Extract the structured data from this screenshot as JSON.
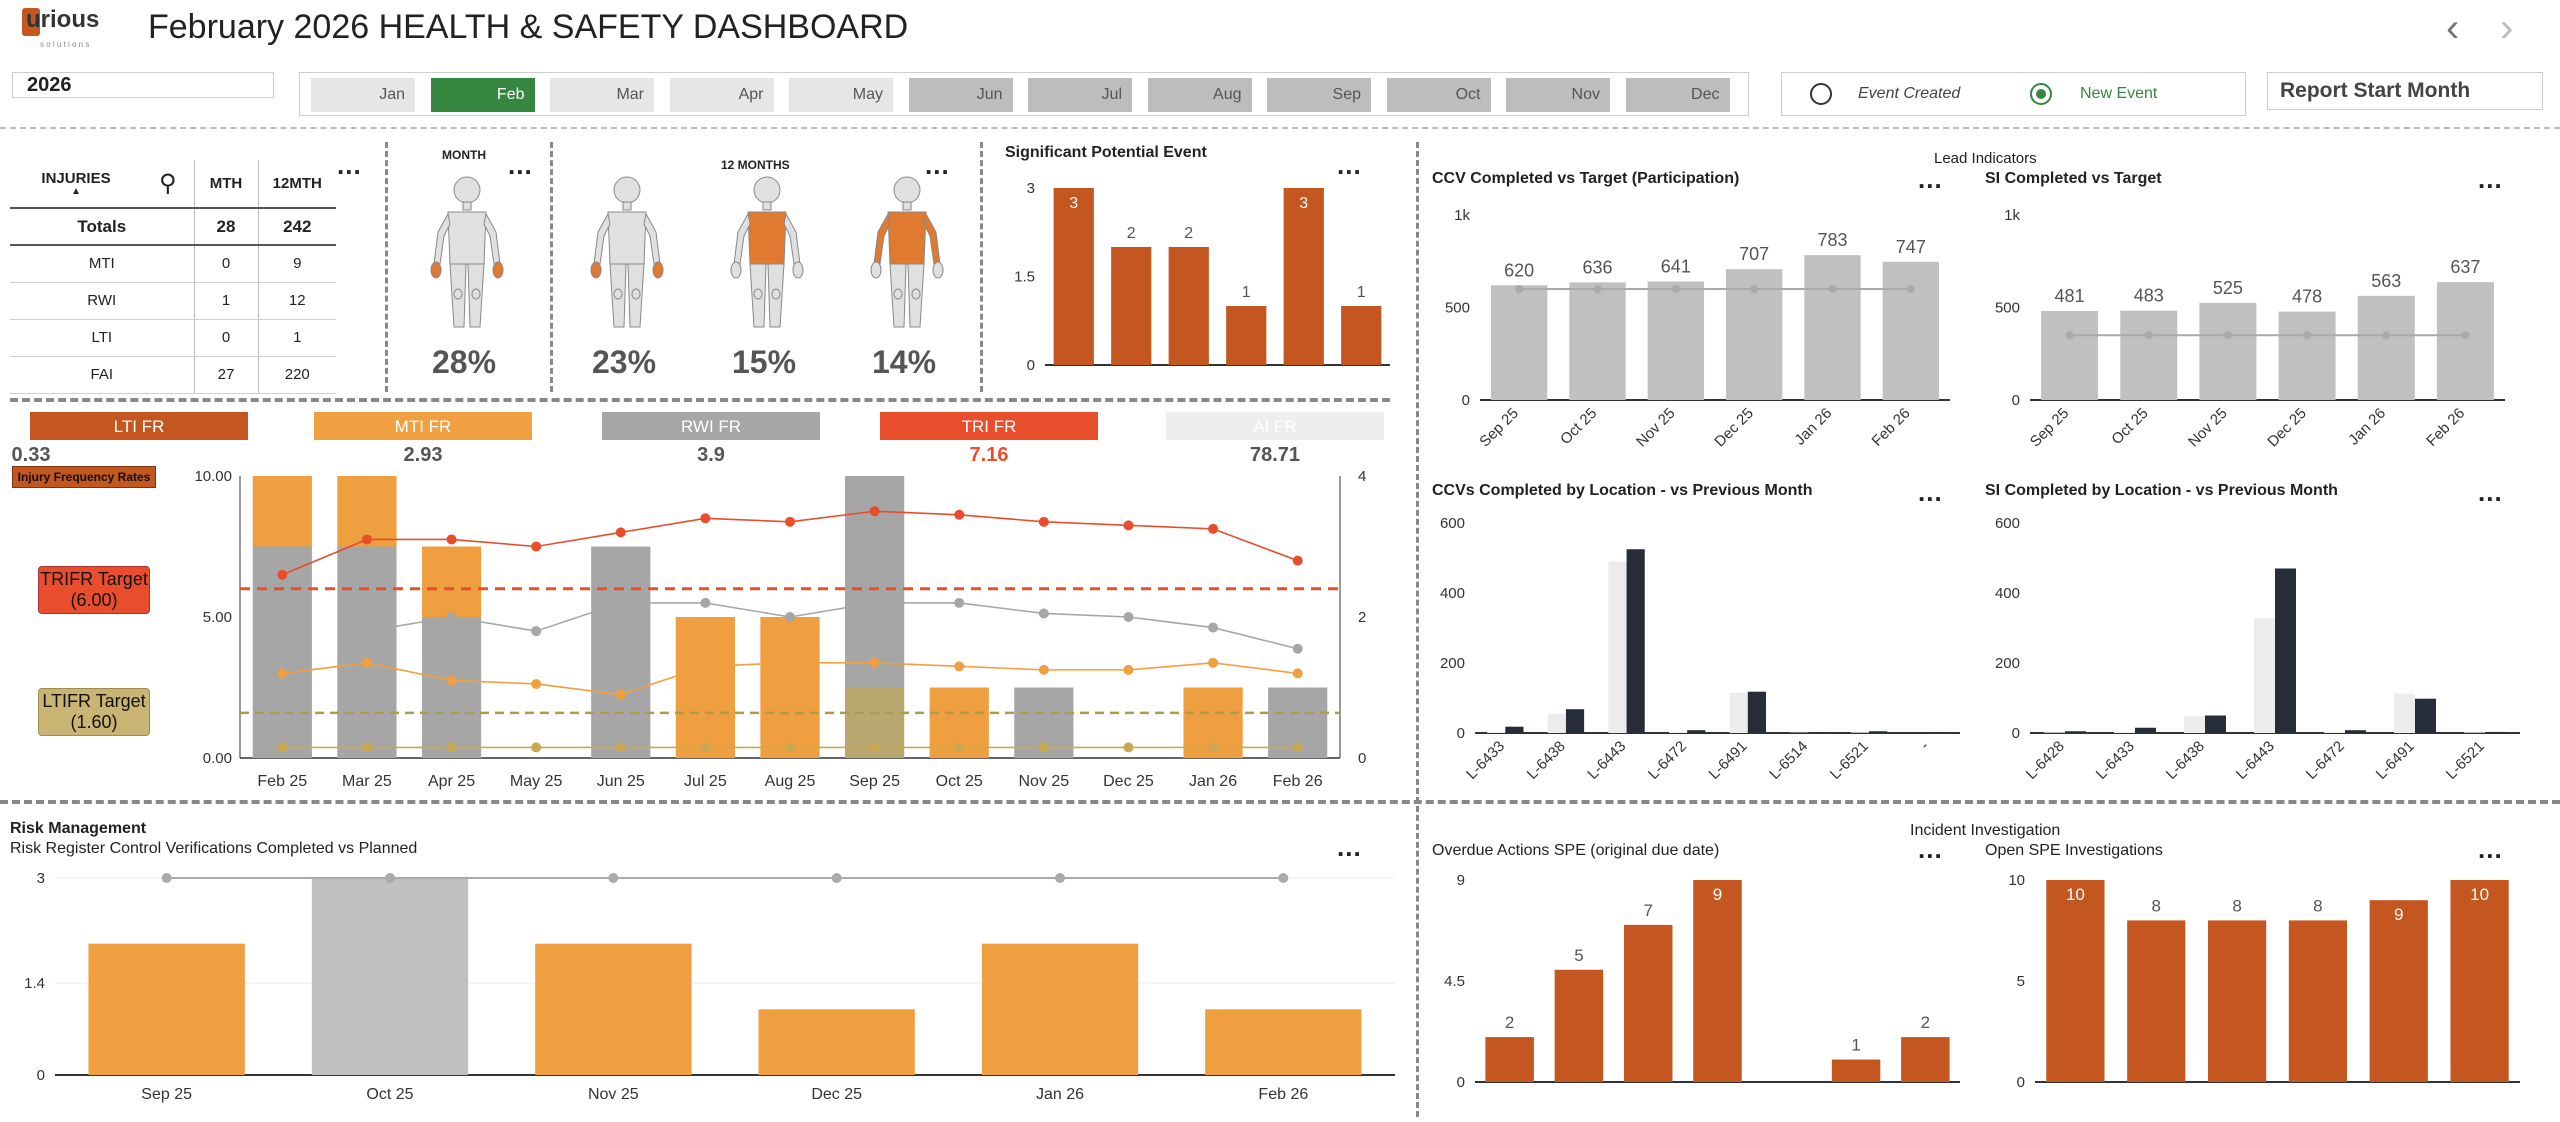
{
  "header": {
    "logo_text": "urious",
    "logo_sub": "s o l u t i o n s",
    "title": "February 2026 HEALTH & SAFETY DASHBOARD",
    "prev": "‹",
    "next": "›"
  },
  "filters": {
    "year": "2026",
    "months": [
      "Jan",
      "Feb",
      "Mar",
      "Apr",
      "May",
      "Jun",
      "Jul",
      "Aug",
      "Sep",
      "Oct",
      "Nov",
      "Dec"
    ],
    "selected_month": "Feb",
    "radio_event_created": "Event Created",
    "radio_new_event": "New Event",
    "report_start": "Report Start Month"
  },
  "injuries": {
    "header": "INJURIES",
    "col_mth": "MTH",
    "col_12mth": "12MTH",
    "rows": [
      {
        "label": "Totals",
        "mth": "28",
        "y12": "242"
      },
      {
        "label": "MTI",
        "mth": "0",
        "y12": "9"
      },
      {
        "label": "RWI",
        "mth": "1",
        "y12": "12"
      },
      {
        "label": "LTI",
        "mth": "0",
        "y12": "1"
      },
      {
        "label": "FAI",
        "mth": "27",
        "y12": "220"
      }
    ]
  },
  "body_maps": {
    "month_label": "MONTH",
    "months12_label": "12 MONTHS",
    "pcts": [
      "28%",
      "23%",
      "15%",
      "14%"
    ]
  },
  "spe": {
    "title": "Significant Potential Event"
  },
  "lead": {
    "section": "Lead Indicators",
    "ccv_title": "CCV Completed vs Target (Participation)",
    "si_title": "SI Completed vs Target",
    "ccv_loc_title": "CCVs Completed by Location - vs Previous Month",
    "si_loc_title": "SI Completed by Location - vs Previous Month"
  },
  "fr": {
    "boxes": [
      {
        "label": "LTI FR",
        "value": "0.33",
        "color": "#c4561f"
      },
      {
        "label": "MTI FR",
        "value": "2.93",
        "color": "#f0a040"
      },
      {
        "label": "RWI FR",
        "value": "3.9",
        "color": "#a6a6a6"
      },
      {
        "label": "TRI FR",
        "value": "7.16",
        "color": "#e84e2c"
      },
      {
        "label": "AI FR",
        "value": "78.71",
        "color": "#eeeeee"
      }
    ],
    "tag": "Injury Frequency Rates",
    "trifr_target": "TRIFR Target",
    "trifr_val": "(6.00)",
    "ltifr_target": "LTIFR Target",
    "ltifr_val": "(1.60)"
  },
  "risk": {
    "section": "Risk Management",
    "title": "Risk Register Control Verifications Completed vs Planned"
  },
  "incident": {
    "section": "Incident Investigation",
    "overdue_title": "Overdue Actions SPE (original due date)",
    "open_title": "Open SPE Investigations"
  },
  "colors": {
    "orange": "#c4561f",
    "light_orange": "#f0a040",
    "grey": "#a6a6a6",
    "red": "#e84e2c",
    "green": "#35873f"
  },
  "chart_data": [
    {
      "id": "spe",
      "type": "bar",
      "categories": [
        "",
        "",
        "",
        "",
        "",
        ""
      ],
      "values": [
        3,
        2,
        2,
        1,
        3,
        1
      ],
      "ylim": [
        0,
        3
      ],
      "yticks": [
        "0",
        "1.5",
        "3"
      ]
    },
    {
      "id": "ccv",
      "type": "bar",
      "categories": [
        "Sep 25",
        "Oct 25",
        "Nov 25",
        "Dec 25",
        "Jan 26",
        "Feb 26"
      ],
      "values": [
        620,
        636,
        641,
        707,
        783,
        747
      ],
      "target": [
        600,
        600,
        600,
        600,
        600,
        600
      ],
      "ylim": [
        0,
        1000
      ],
      "yticks": [
        "0",
        "500",
        "1k"
      ]
    },
    {
      "id": "si",
      "type": "bar",
      "categories": [
        "Sep 25",
        "Oct 25",
        "Nov 25",
        "Dec 25",
        "Jan 26",
        "Feb 26"
      ],
      "values": [
        481,
        483,
        525,
        478,
        563,
        637
      ],
      "target": [
        350,
        350,
        350,
        350,
        350,
        350
      ],
      "ylim": [
        0,
        1000
      ],
      "yticks": [
        "0",
        "500",
        "1k"
      ]
    },
    {
      "id": "ccvloc",
      "type": "bar",
      "categories": [
        "L-6433",
        "L-6438",
        "L-6443",
        "L-6472",
        "L-6491",
        "L-6514",
        "L-6521",
        "-"
      ],
      "series": [
        {
          "values": [
            3,
            55,
            490,
            3,
            115,
            1,
            2,
            0
          ]
        },
        {
          "values": [
            18,
            68,
            525,
            8,
            118,
            2,
            5,
            1
          ]
        }
      ],
      "ylim": [
        0,
        600
      ],
      "yticks": [
        "0",
        "200",
        "400",
        "600"
      ]
    },
    {
      "id": "siloc",
      "type": "bar",
      "categories": [
        "L-6428",
        "L-6433",
        "L-6438",
        "L-6443",
        "L-6472",
        "L-6491",
        "L-6521"
      ],
      "series": [
        {
          "values": [
            2,
            3,
            48,
            328,
            3,
            112,
            2
          ]
        },
        {
          "values": [
            5,
            15,
            50,
            470,
            8,
            98,
            3
          ]
        }
      ],
      "ylim": [
        0,
        600
      ],
      "yticks": [
        "0",
        "200",
        "400",
        "600"
      ]
    },
    {
      "id": "ifr",
      "type": "bar",
      "categories": [
        "Feb 25",
        "Mar 25",
        "Apr 25",
        "May 25",
        "Jun 25",
        "Jul 25",
        "Aug 25",
        "Sep 25",
        "Oct 25",
        "Nov 25",
        "Dec 25",
        "Jan 26",
        "Feb 26"
      ],
      "series": [
        {
          "name": "grey",
          "values": [
            3,
            3,
            2,
            0,
            3,
            0,
            0,
            3,
            0,
            1,
            0,
            0,
            1
          ]
        },
        {
          "name": "orange",
          "values": [
            1,
            1,
            1,
            0,
            0,
            2,
            2,
            1,
            1,
            0,
            0,
            1,
            0
          ]
        },
        {
          "name": "khaki",
          "values": [
            0,
            0,
            0,
            0,
            0,
            0,
            0,
            1,
            0,
            0,
            0,
            0,
            0
          ]
        }
      ],
      "lines": [
        {
          "name": "TRI FR",
          "values": [
            2.6,
            3.1,
            3.1,
            3.0,
            3.2,
            3.4,
            3.35,
            3.5,
            3.45,
            3.35,
            3.3,
            3.25,
            2.8
          ],
          "color": "#e84e2c"
        },
        {
          "name": "RWI FR",
          "values": [
            null,
            1.8,
            2.0,
            1.8,
            2.2,
            2.2,
            2.0,
            2.2,
            2.2,
            2.05,
            2.0,
            1.85,
            1.55
          ],
          "color": "#a6a6a6"
        },
        {
          "name": "MTI FR",
          "values": [
            1.2,
            1.35,
            1.1,
            1.05,
            0.9,
            1.3,
            1.35,
            1.35,
            1.3,
            1.25,
            1.25,
            1.35,
            1.2
          ],
          "color": "#f0a040"
        },
        {
          "name": "LTI FR",
          "values": [
            0.15,
            0.15,
            0.15,
            0.15,
            0.15,
            0.15,
            0.15,
            0.15,
            0.15,
            0.15,
            0.15,
            0.15,
            0.15
          ],
          "color": "#c9a850"
        }
      ],
      "ylim": [
        0,
        4
      ],
      "yticks_left": [
        "0.00",
        "5.00",
        "10.00"
      ],
      "yticks_right": [
        "0",
        "2",
        "4"
      ],
      "trifr_target": 6.0,
      "ltifr_target": 1.6
    },
    {
      "id": "risk",
      "type": "bar",
      "categories": [
        "Sep 25",
        "Oct 25",
        "Nov 25",
        "Dec 25",
        "Jan 26",
        "Feb 26"
      ],
      "values": [
        2,
        3,
        2,
        1,
        2,
        1
      ],
      "planned": [
        3,
        3,
        3,
        3,
        3,
        3
      ],
      "ylim": [
        0,
        3
      ],
      "yticks": [
        "0",
        "1.4",
        "3"
      ]
    },
    {
      "id": "overdue",
      "type": "bar",
      "categories": [
        "",
        "",
        "",
        "",
        "",
        "",
        ""
      ],
      "values": [
        2,
        5,
        7,
        9,
        0,
        1,
        2
      ],
      "ylim": [
        0,
        9
      ],
      "yticks": [
        "0",
        "4.5",
        "9"
      ]
    },
    {
      "id": "open",
      "type": "bar",
      "categories": [
        "",
        "",
        "",
        "",
        "",
        ""
      ],
      "values": [
        10,
        8,
        8,
        8,
        9,
        10
      ],
      "ylim": [
        0,
        10
      ],
      "yticks": [
        "0",
        "5",
        "10"
      ]
    }
  ]
}
